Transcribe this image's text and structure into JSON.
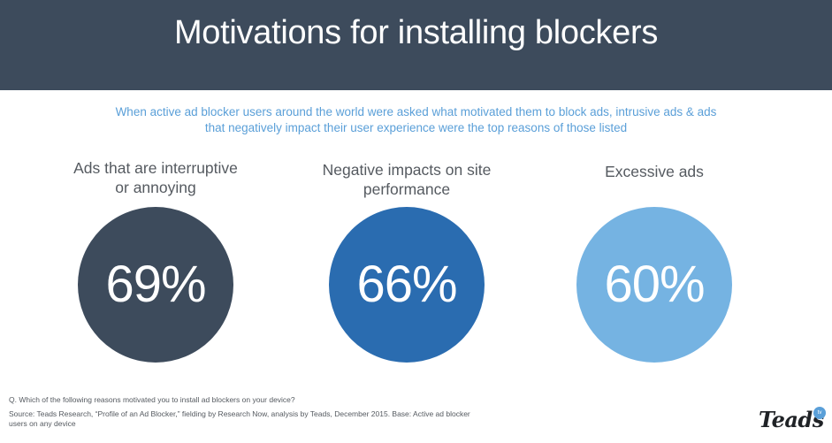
{
  "header": {
    "title": "Motivations for installing blockers"
  },
  "intro": {
    "line1": "When active ad blocker users around the world were asked what motivated them to block ads, intrusive ads & ads",
    "line2": "that negatively impact their user experience were the top reasons of those listed"
  },
  "stats": [
    {
      "label_line1": "Ads that are interruptive",
      "label_line2": "or annoying",
      "value": "69%",
      "color": "#3d4b5c"
    },
    {
      "label_line1": "Negative impacts on site",
      "label_line2": "performance",
      "value": "66%",
      "color": "#2a6cb0"
    },
    {
      "label_line1": "Excessive ads",
      "label_line2": "",
      "value": "60%",
      "color": "#75b3e2"
    }
  ],
  "footnotes": {
    "question": "Q. Which of the following reasons motivated you to install ad blockers on your device?",
    "source_line1": "Source: Teads Research, “Profile of an Ad Blocker,” fielding by Research Now, analysis by Teads, December 2015. Base: Active ad blocker",
    "source_line2": "users on any device"
  },
  "logo": {
    "wordmark": "Teads",
    "badge": "tv",
    "icon": "teads-logo-icon"
  },
  "colors": {
    "header_bg": "#3d4b5c",
    "accent_text": "#5a9fd8",
    "body_text": "#555a60"
  }
}
